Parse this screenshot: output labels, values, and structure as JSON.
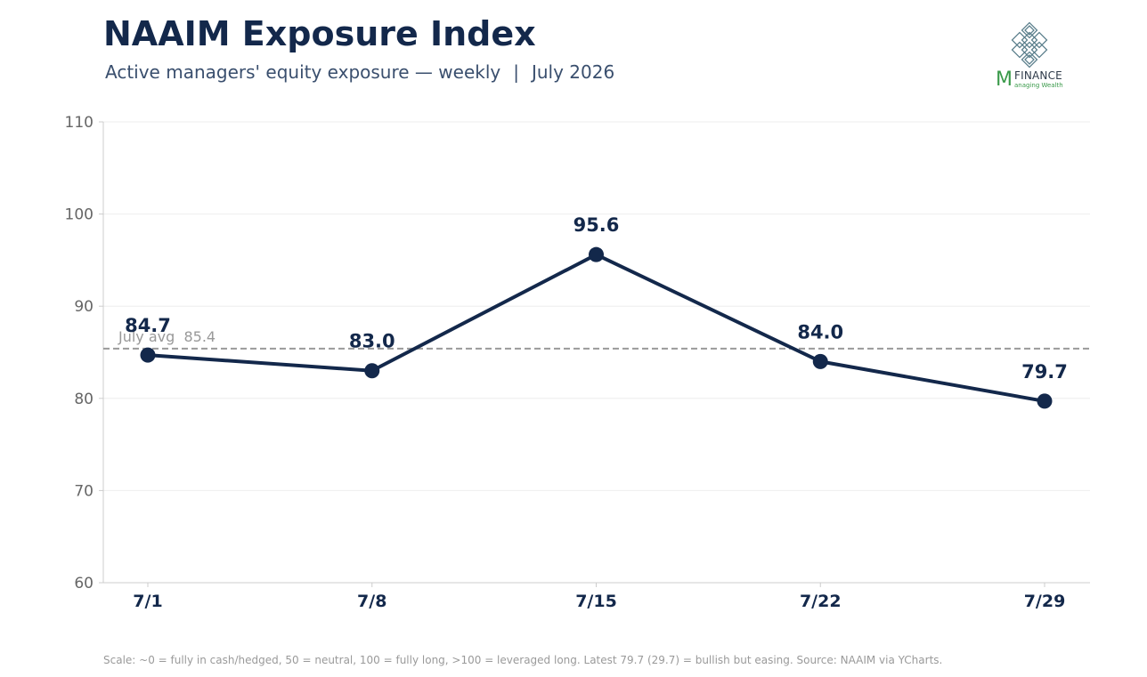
{
  "header": {
    "title": "NAAIM Exposure Index",
    "subtitle_main": "Active managers' equity exposure — weekly",
    "subtitle_sep": "|",
    "subtitle_period": "July 2026"
  },
  "logo": {
    "letter": "M",
    "word": "FINANCE",
    "tagline": "anaging Wealth"
  },
  "colors": {
    "line": "#13284b",
    "avg_line": "#999999",
    "grid": "#eeeeee",
    "axis": "#cccccc",
    "tick_text": "#666666",
    "logo_green": "#3a9a4a",
    "logo_knot": "#5b7f8c"
  },
  "chart_data": {
    "type": "line",
    "categories": [
      "7/1",
      "7/8",
      "7/15",
      "7/22",
      "7/29"
    ],
    "series": [
      {
        "values": [
          84.7,
          83.0,
          95.6,
          84.0,
          79.7
        ]
      }
    ],
    "data_labels": [
      "84.7",
      "83.0",
      "95.6",
      "84.0",
      "79.7"
    ],
    "ylim": [
      60,
      110
    ],
    "yticks": [
      "60",
      "70",
      "80",
      "90",
      "100",
      "110"
    ],
    "reference_line": {
      "value": 85.4,
      "label": "July avg  85.4"
    },
    "grid": true,
    "xlabel": "",
    "ylabel": ""
  },
  "footnote": "Scale: ~0 = fully in cash/hedged, 50 = neutral, 100 = fully long, >100 = leveraged long.   Latest 79.7 (29.7) = bullish but easing.   Source: NAAIM via YCharts."
}
